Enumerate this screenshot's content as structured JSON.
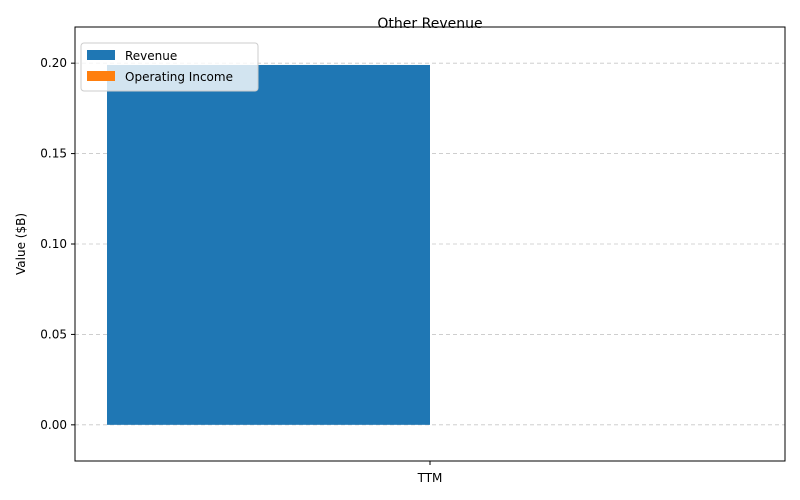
{
  "chart_data": {
    "type": "bar",
    "title": "Other Revenue",
    "xlabel": "",
    "ylabel": "Value ($B)",
    "categories": [
      "TTM"
    ],
    "series": [
      {
        "name": "Revenue",
        "values": [
          0.199
        ],
        "color": "#1f77b4"
      },
      {
        "name": "Operating Income",
        "values": [
          0
        ],
        "color": "#ff7f0e"
      }
    ],
    "ylim": [
      -0.02,
      0.22
    ],
    "yticks": [
      0.0,
      0.05,
      0.1,
      0.15,
      0.2
    ],
    "ytick_labels": [
      "0.00",
      "0.05",
      "0.10",
      "0.15",
      "0.20"
    ],
    "grid": "y-dashed",
    "legend": "top-left"
  }
}
